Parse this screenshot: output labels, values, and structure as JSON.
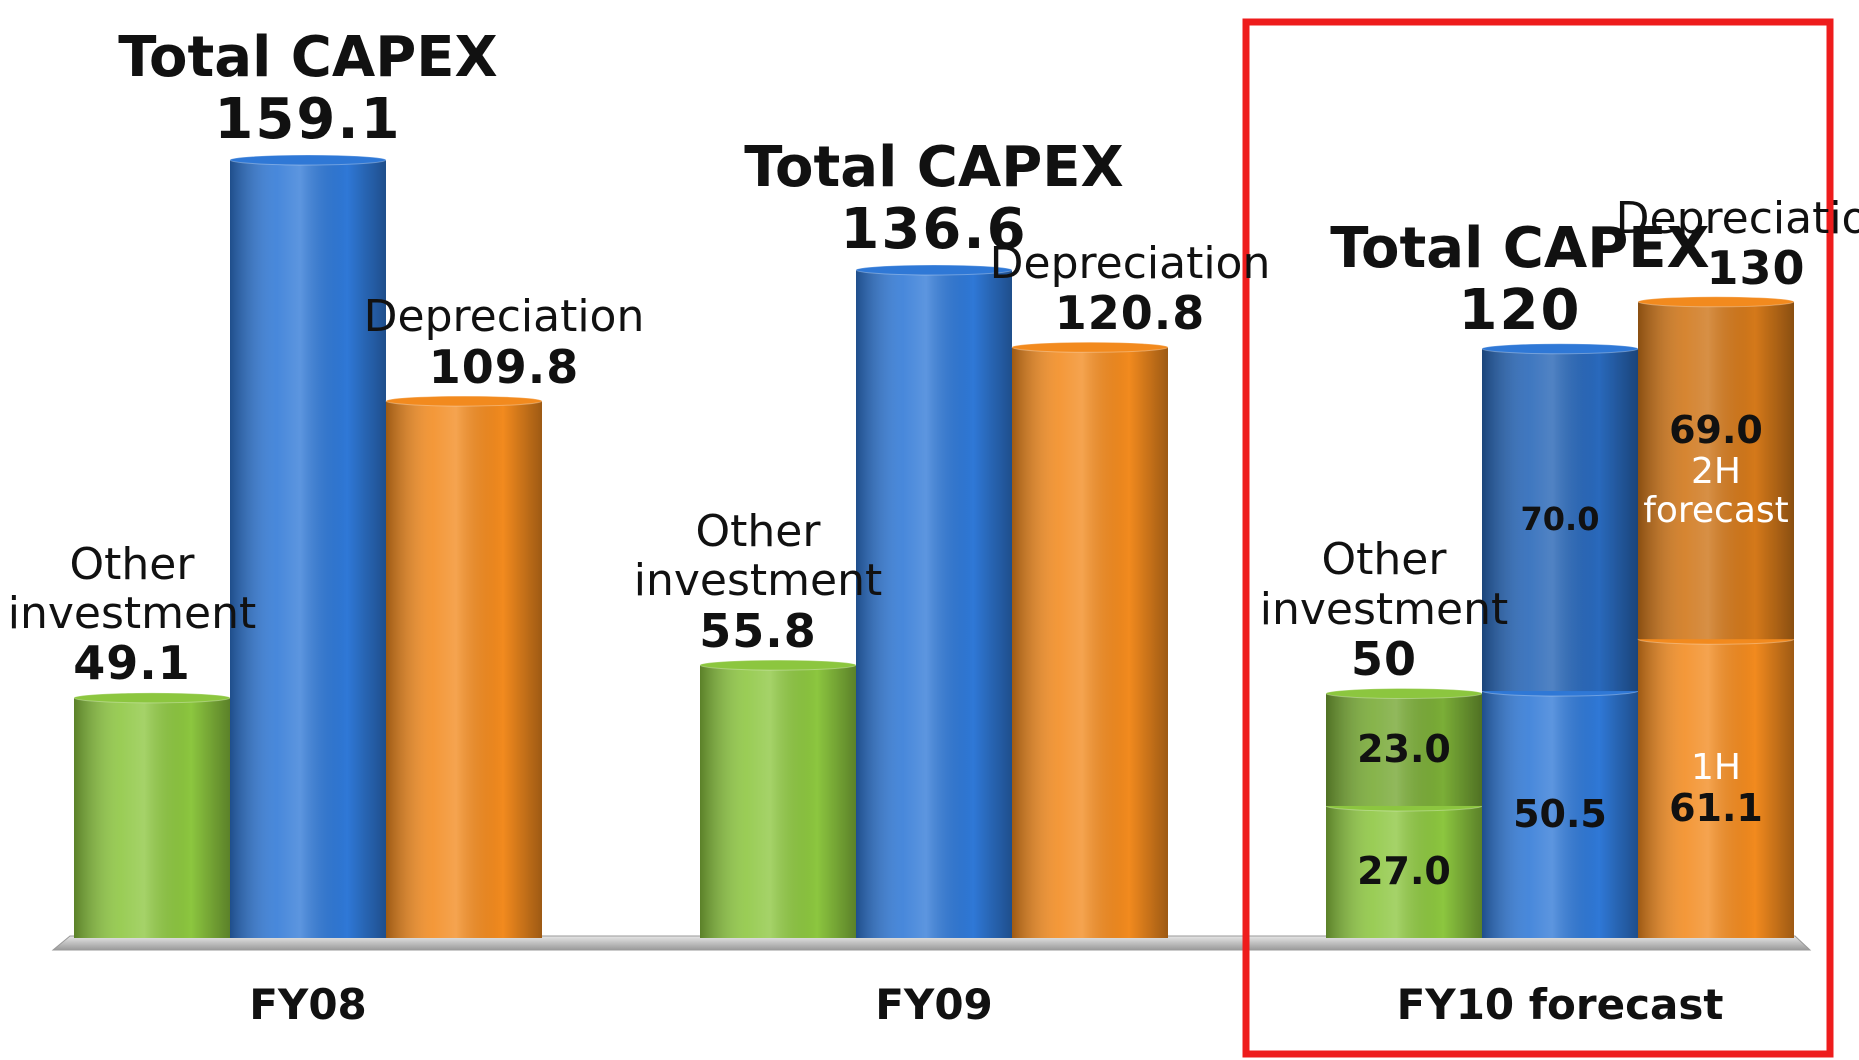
{
  "chart_data": {
    "type": "bar",
    "categories": [
      "FY08",
      "FY09",
      "FY10 forecast"
    ],
    "series": [
      {
        "name": "Other investment",
        "color": "#8cc63f",
        "values": [
          49.1,
          55.8,
          50
        ]
      },
      {
        "name": "Total CAPEX",
        "color": "#2f78d6",
        "values": [
          159.1,
          136.6,
          120
        ]
      },
      {
        "name": "Depreciation",
        "color": "#f28a1e",
        "values": [
          109.8,
          120.8,
          130
        ]
      }
    ],
    "breakdown": {
      "category": "FY10 forecast",
      "segment_names": [
        "1H",
        "2H forecast"
      ],
      "series": [
        {
          "values": [
            27.0,
            23.0
          ],
          "value_labels": [
            "27.0",
            "23.0"
          ]
        },
        {
          "values": [
            50.5,
            70.0
          ],
          "value_labels": [
            "50.5",
            "70.0"
          ]
        },
        {
          "values": [
            61.1,
            69.0
          ],
          "value_labels": [
            "61.1",
            "69.0"
          ]
        }
      ]
    }
  }
}
